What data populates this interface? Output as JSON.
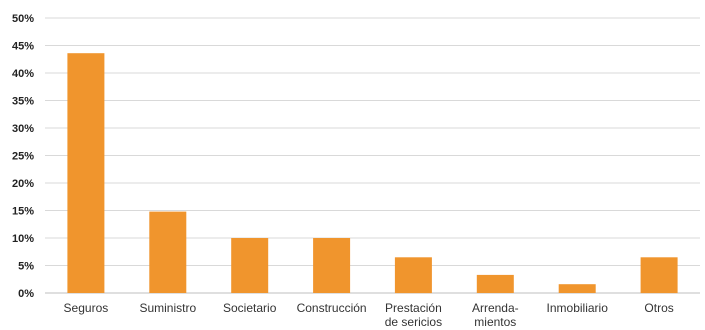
{
  "chart_data": {
    "type": "bar",
    "categories": [
      [
        "Seguros"
      ],
      [
        "Suministro"
      ],
      [
        "Societario"
      ],
      [
        "Construcción"
      ],
      [
        "Prestación",
        "de sericios"
      ],
      [
        "Arrenda-",
        "mientos"
      ],
      [
        "Inmobiliario"
      ],
      [
        "Otros"
      ]
    ],
    "values": [
      43.6,
      14.8,
      10.0,
      10.0,
      6.5,
      3.3,
      1.6,
      6.5
    ],
    "ylim": [
      0,
      50
    ],
    "yticks": [
      "0%",
      "5%",
      "10%",
      "15%",
      "20%",
      "25%",
      "30%",
      "35%",
      "40%",
      "45%",
      "50%"
    ],
    "grid": true,
    "bar_color": "#f0952d",
    "title": "",
    "xlabel": "",
    "ylabel": ""
  }
}
